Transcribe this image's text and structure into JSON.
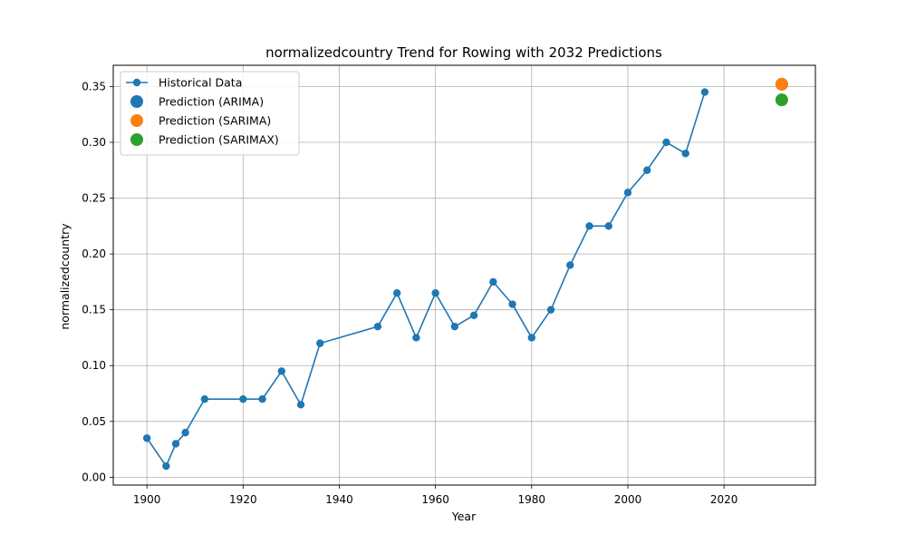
{
  "chart_data": {
    "type": "line",
    "title": "normalizedcountry Trend for Rowing with 2032 Predictions",
    "xlabel": "Year",
    "ylabel": "normalizedcountry",
    "xlim": [
      1893,
      2039
    ],
    "ylim": [
      -0.007,
      0.369
    ],
    "x_ticks": [
      1900,
      1920,
      1940,
      1960,
      1980,
      2000,
      2020
    ],
    "y_ticks": [
      0.0,
      0.05,
      0.1,
      0.15,
      0.2,
      0.25,
      0.3,
      0.35
    ],
    "x_tick_labels": [
      "1900",
      "1920",
      "1940",
      "1960",
      "1980",
      "2000",
      "2020"
    ],
    "y_tick_labels": [
      "0.00",
      "0.05",
      "0.10",
      "0.15",
      "0.20",
      "0.25",
      "0.30",
      "0.35"
    ],
    "grid": true,
    "legend_position": "top-left",
    "series": [
      {
        "name": "Historical Data",
        "kind": "line-marker",
        "color": "#1f77b4",
        "x": [
          1900,
          1904,
          1906,
          1908,
          1912,
          1920,
          1924,
          1928,
          1932,
          1936,
          1948,
          1952,
          1956,
          1960,
          1964,
          1968,
          1972,
          1976,
          1980,
          1984,
          1988,
          1992,
          1996,
          2000,
          2004,
          2008,
          2012,
          2016
        ],
        "y": [
          0.035,
          0.01,
          0.03,
          0.04,
          0.07,
          0.07,
          0.07,
          0.095,
          0.065,
          0.12,
          0.135,
          0.165,
          0.125,
          0.165,
          0.135,
          0.145,
          0.175,
          0.155,
          0.125,
          0.15,
          0.19,
          0.225,
          0.225,
          0.255,
          0.275,
          0.3,
          0.29,
          0.345
        ]
      },
      {
        "name": "Prediction (ARIMA)",
        "kind": "point",
        "color": "#1f77b4",
        "x": [
          2032
        ],
        "y": [
          0.352
        ]
      },
      {
        "name": "Prediction (SARIMA)",
        "kind": "point",
        "color": "#ff7f0e",
        "x": [
          2032
        ],
        "y": [
          0.352
        ]
      },
      {
        "name": "Prediction (SARIMAX)",
        "kind": "point",
        "color": "#2ca02c",
        "x": [
          2032
        ],
        "y": [
          0.338
        ]
      }
    ]
  }
}
